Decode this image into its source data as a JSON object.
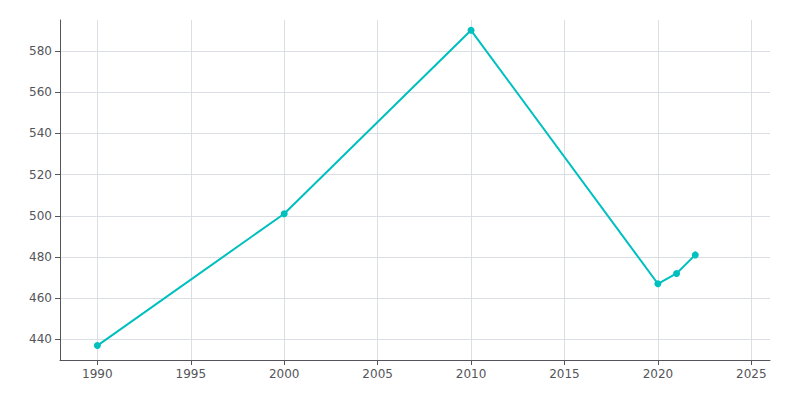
{
  "chart_data": {
    "type": "line",
    "x": [
      1990,
      2000,
      2010,
      2020,
      2021,
      2022
    ],
    "values": [
      437,
      501,
      590,
      467,
      472,
      481
    ],
    "color": "#00BFBF",
    "marker": "circle",
    "xlim": [
      1988,
      2026
    ],
    "ylim": [
      430,
      595
    ],
    "xticks": [
      1990,
      1995,
      2000,
      2005,
      2010,
      2015,
      2020,
      2025
    ],
    "yticks": [
      440,
      460,
      480,
      500,
      520,
      540,
      560,
      580
    ],
    "grid": true
  }
}
